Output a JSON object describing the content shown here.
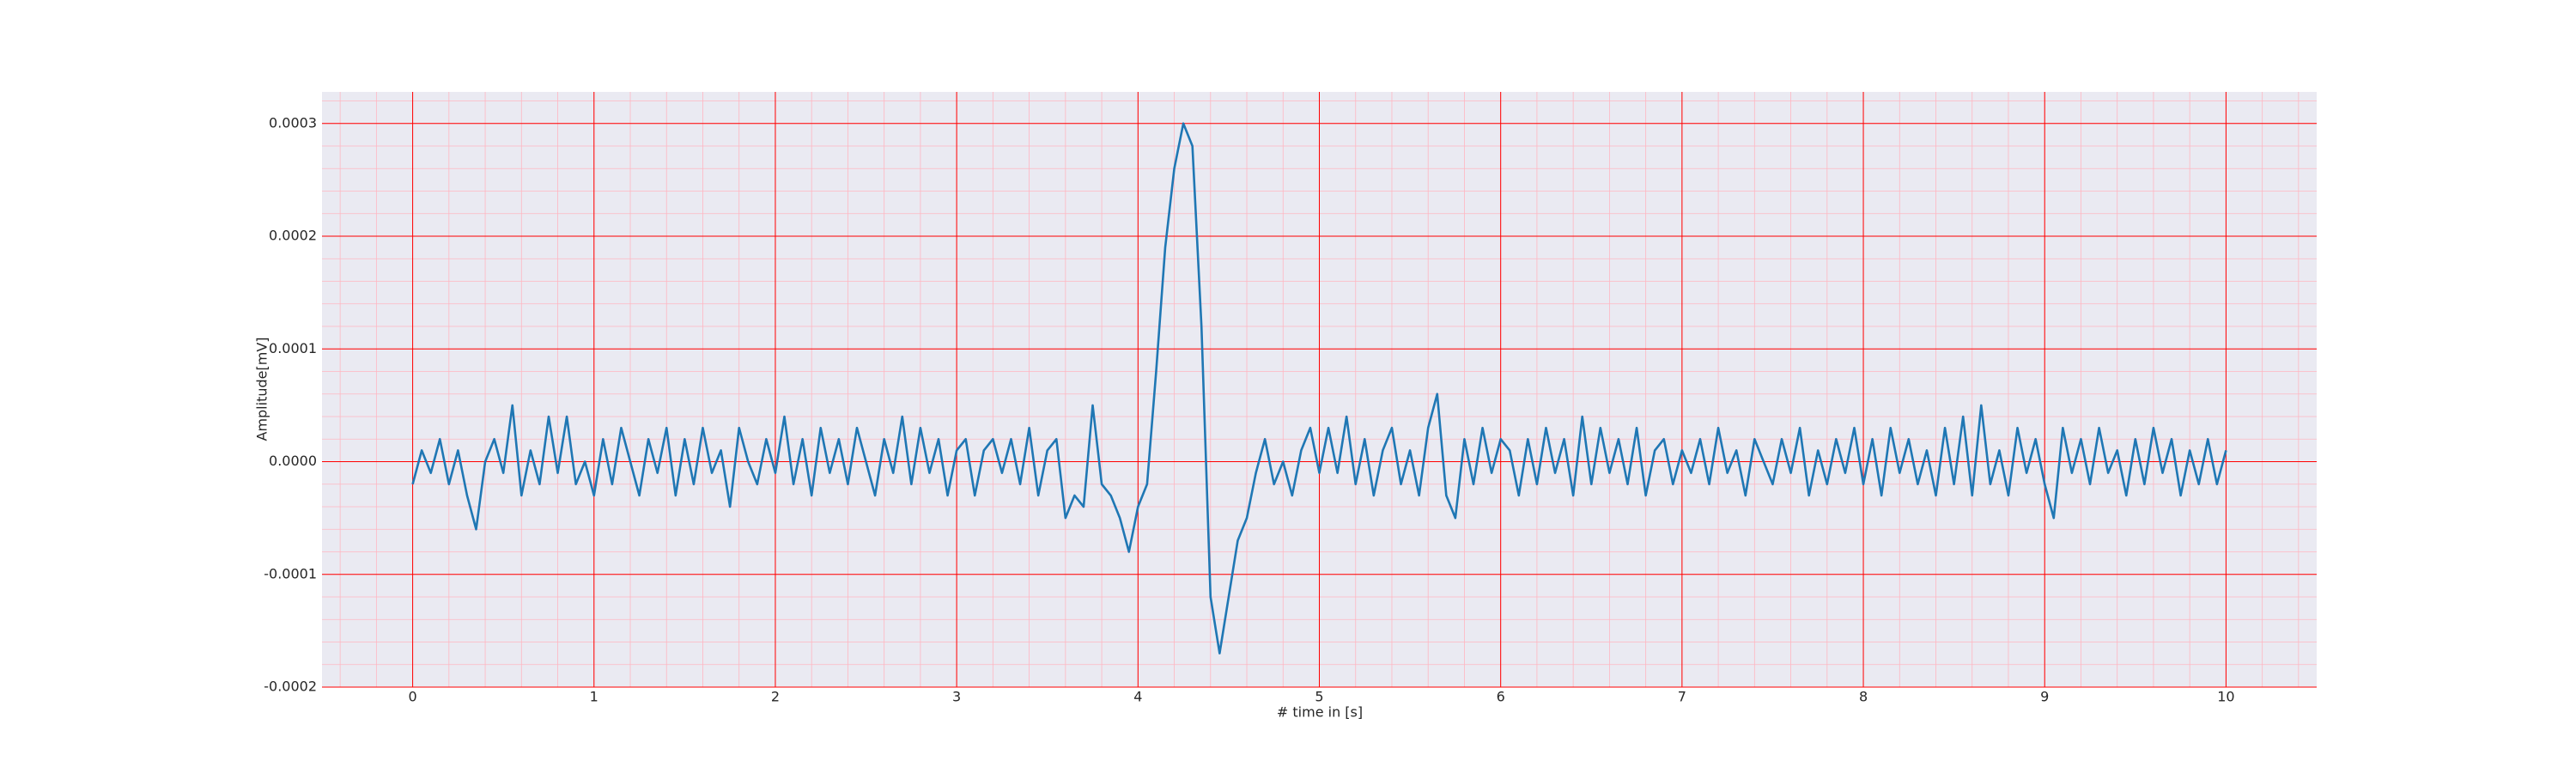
{
  "chart_data": {
    "type": "line",
    "xlabel": "# time in [s]",
    "ylabel": "Amplitude[mV]",
    "x": [
      0,
      0.05,
      0.1,
      0.15,
      0.2,
      0.25,
      0.3,
      0.35,
      0.4,
      0.45,
      0.5,
      0.55,
      0.6,
      0.65,
      0.7,
      0.75,
      0.8,
      0.85,
      0.9,
      0.95,
      1,
      1.05,
      1.1,
      1.15,
      1.2,
      1.25,
      1.3,
      1.35,
      1.4,
      1.45,
      1.5,
      1.55,
      1.6,
      1.65,
      1.7,
      1.75,
      1.8,
      1.85,
      1.9,
      1.95,
      2,
      2.05,
      2.1,
      2.15,
      2.2,
      2.25,
      2.3,
      2.35,
      2.4,
      2.45,
      2.5,
      2.55,
      2.6,
      2.65,
      2.7,
      2.75,
      2.8,
      2.85,
      2.9,
      2.95,
      3,
      3.05,
      3.1,
      3.15,
      3.2,
      3.25,
      3.3,
      3.35,
      3.4,
      3.45,
      3.5,
      3.55,
      3.6,
      3.65,
      3.7,
      3.75,
      3.8,
      3.85,
      3.9,
      3.95,
      4,
      4.05,
      4.1,
      4.15,
      4.2,
      4.25,
      4.3,
      4.35,
      4.4,
      4.45,
      4.5,
      4.55,
      4.6,
      4.65,
      4.7,
      4.75,
      4.8,
      4.85,
      4.9,
      4.95,
      5,
      5.05,
      5.1,
      5.15,
      5.2,
      5.25,
      5.3,
      5.35,
      5.4,
      5.45,
      5.5,
      5.55,
      5.6,
      5.65,
      5.7,
      5.75,
      5.8,
      5.85,
      5.9,
      5.95,
      6,
      6.05,
      6.1,
      6.15,
      6.2,
      6.25,
      6.3,
      6.35,
      6.4,
      6.45,
      6.5,
      6.55,
      6.6,
      6.65,
      6.7,
      6.75,
      6.8,
      6.85,
      6.9,
      6.95,
      7,
      7.05,
      7.1,
      7.15,
      7.2,
      7.25,
      7.3,
      7.35,
      7.4,
      7.45,
      7.5,
      7.55,
      7.6,
      7.65,
      7.7,
      7.75,
      7.8,
      7.85,
      7.9,
      7.95,
      8,
      8.05,
      8.1,
      8.15,
      8.2,
      8.25,
      8.3,
      8.35,
      8.4,
      8.45,
      8.5,
      8.55,
      8.6,
      8.65,
      8.7,
      8.75,
      8.8,
      8.85,
      8.9,
      8.95,
      9,
      9.05,
      9.1,
      9.15,
      9.2,
      9.25,
      9.3,
      9.35,
      9.4,
      9.45,
      9.5,
      9.55,
      9.6,
      9.65,
      9.7,
      9.75,
      9.8,
      9.85,
      9.9,
      9.95,
      10
    ],
    "series": [
      {
        "color": "#1f77b4",
        "values": [
          -2e-05,
          1e-05,
          -1e-05,
          2e-05,
          -2e-05,
          1e-05,
          -3e-05,
          -6e-05,
          0,
          2e-05,
          -1e-05,
          5e-05,
          -3e-05,
          1e-05,
          -2e-05,
          4e-05,
          -1e-05,
          4e-05,
          -2e-05,
          0,
          -3e-05,
          2e-05,
          -2e-05,
          3e-05,
          0,
          -3e-05,
          2e-05,
          -1e-05,
          3e-05,
          -3e-05,
          2e-05,
          -2e-05,
          3e-05,
          -1e-05,
          1e-05,
          -4e-05,
          3e-05,
          0,
          -2e-05,
          2e-05,
          -1e-05,
          4e-05,
          -2e-05,
          2e-05,
          -3e-05,
          3e-05,
          -1e-05,
          2e-05,
          -2e-05,
          3e-05,
          0,
          -3e-05,
          2e-05,
          -1e-05,
          4e-05,
          -2e-05,
          3e-05,
          -1e-05,
          2e-05,
          -3e-05,
          1e-05,
          2e-05,
          -3e-05,
          1e-05,
          2e-05,
          -1e-05,
          2e-05,
          -2e-05,
          3e-05,
          -3e-05,
          1e-05,
          2e-05,
          -5e-05,
          -3e-05,
          -4e-05,
          5e-05,
          -2e-05,
          -3e-05,
          -5e-05,
          -8e-05,
          -4e-05,
          -2e-05,
          8e-05,
          0.00019,
          0.00026,
          0.0003,
          0.00028,
          0.00012,
          -0.00012,
          -0.00017,
          -0.00012,
          -7e-05,
          -5e-05,
          -1e-05,
          2e-05,
          -2e-05,
          0,
          -3e-05,
          1e-05,
          3e-05,
          -1e-05,
          3e-05,
          -1e-05,
          4e-05,
          -2e-05,
          2e-05,
          -3e-05,
          1e-05,
          3e-05,
          -2e-05,
          1e-05,
          -3e-05,
          3e-05,
          6e-05,
          -3e-05,
          -5e-05,
          2e-05,
          -2e-05,
          3e-05,
          -1e-05,
          2e-05,
          1e-05,
          -3e-05,
          2e-05,
          -2e-05,
          3e-05,
          -1e-05,
          2e-05,
          -3e-05,
          4e-05,
          -2e-05,
          3e-05,
          -1e-05,
          2e-05,
          -2e-05,
          3e-05,
          -3e-05,
          1e-05,
          2e-05,
          -2e-05,
          1e-05,
          -1e-05,
          2e-05,
          -2e-05,
          3e-05,
          -1e-05,
          1e-05,
          -3e-05,
          2e-05,
          0,
          -2e-05,
          2e-05,
          -1e-05,
          3e-05,
          -3e-05,
          1e-05,
          -2e-05,
          2e-05,
          -1e-05,
          3e-05,
          -2e-05,
          2e-05,
          -3e-05,
          3e-05,
          -1e-05,
          2e-05,
          -2e-05,
          1e-05,
          -3e-05,
          3e-05,
          -2e-05,
          4e-05,
          -3e-05,
          5e-05,
          -2e-05,
          1e-05,
          -3e-05,
          3e-05,
          -1e-05,
          2e-05,
          -2e-05,
          -5e-05,
          3e-05,
          -1e-05,
          2e-05,
          -2e-05,
          3e-05,
          -1e-05,
          1e-05,
          -3e-05,
          2e-05,
          -2e-05,
          3e-05,
          -1e-05,
          2e-05,
          -3e-05,
          1e-05,
          -2e-05,
          2e-05,
          -2e-05,
          1e-05
        ]
      }
    ],
    "xlim": [
      -0.5,
      10.5
    ],
    "xticks": [
      0,
      1,
      2,
      3,
      4,
      5,
      6,
      7,
      8,
      9,
      10
    ],
    "ylim": [
      -0.0002,
      0.000328
    ],
    "yticks": [
      -0.0002,
      -0.0001,
      {
        "value": 0,
        "label": "0.0000"
      },
      0.0001,
      0.0002,
      0.0003
    ],
    "grid": true,
    "grid_color": "#ff0000",
    "minor_grid": true,
    "minor_divisions": 5,
    "minor_grid_color": "#ffb6c1",
    "background": "#eaeaf2"
  }
}
